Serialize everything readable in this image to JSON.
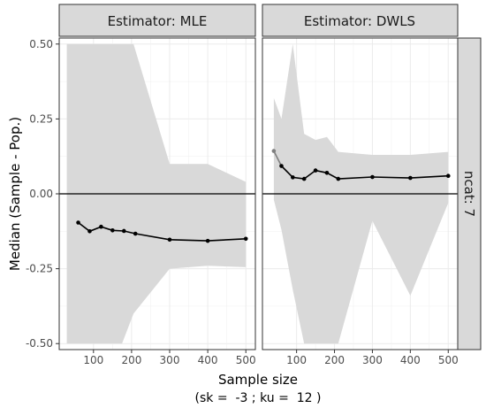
{
  "chart_data": {
    "type": "line",
    "ylabel": "Median (Sample - Pop.)",
    "xlabel": "Sample size",
    "subtitle": "(sk =  -3 ; ku =  12 )",
    "row_strip": "ncat: 7",
    "ylim": [
      -0.52,
      0.52
    ],
    "xlim": [
      10,
      525
    ],
    "y_ticks": [
      -0.5,
      -0.25,
      0.0,
      0.25,
      0.5
    ],
    "y_tick_labels": [
      "-0.50",
      "-0.25",
      "0.00",
      "0.25",
      "0.50"
    ],
    "x_ticks": [
      100,
      200,
      300,
      400,
      500
    ],
    "x_tick_labels": [
      "100",
      "200",
      "300",
      "400",
      "500"
    ],
    "reference_line": 0,
    "grid": true,
    "colors": {
      "band": "#d9d9d9",
      "line": "#000000",
      "strip_fill": "#d9d9d9",
      "grid": "#ebebeb",
      "first_segment": "#7f7f7f"
    },
    "panels": [
      {
        "title": "Estimator: MLE",
        "points": [
          {
            "x": 60,
            "y": -0.096
          },
          {
            "x": 90,
            "y": -0.125
          },
          {
            "x": 120,
            "y": -0.11
          },
          {
            "x": 150,
            "y": -0.122
          },
          {
            "x": 180,
            "y": -0.124
          },
          {
            "x": 210,
            "y": -0.133
          },
          {
            "x": 300,
            "y": -0.153
          },
          {
            "x": 400,
            "y": -0.157
          },
          {
            "x": 500,
            "y": -0.15
          }
        ],
        "band": [
          {
            "x": 30,
            "lo": -0.5,
            "hi": 0.5
          },
          {
            "x": 175,
            "lo": -0.5,
            "hi": 0.5
          },
          {
            "x": 205,
            "lo": -0.4,
            "hi": 0.5
          },
          {
            "x": 300,
            "lo": -0.25,
            "hi": 0.1
          },
          {
            "x": 400,
            "lo": -0.24,
            "hi": 0.1
          },
          {
            "x": 500,
            "lo": -0.245,
            "hi": 0.04
          }
        ]
      },
      {
        "title": "Estimator: DWLS",
        "points": [
          {
            "x": 40,
            "y": 0.143
          },
          {
            "x": 60,
            "y": 0.093
          },
          {
            "x": 90,
            "y": 0.055
          },
          {
            "x": 120,
            "y": 0.05
          },
          {
            "x": 150,
            "y": 0.078
          },
          {
            "x": 180,
            "y": 0.07
          },
          {
            "x": 210,
            "y": 0.05
          },
          {
            "x": 300,
            "y": 0.056
          },
          {
            "x": 400,
            "y": 0.053
          },
          {
            "x": 500,
            "y": 0.06
          }
        ],
        "band": [
          {
            "x": 40,
            "lo": -0.02,
            "hi": 0.32
          },
          {
            "x": 60,
            "lo": -0.12,
            "hi": 0.25
          },
          {
            "x": 90,
            "lo": -0.32,
            "hi": 0.5
          },
          {
            "x": 120,
            "lo": -0.5,
            "hi": 0.2
          },
          {
            "x": 150,
            "lo": -0.5,
            "hi": 0.18
          },
          {
            "x": 180,
            "lo": -0.5,
            "hi": 0.19
          },
          {
            "x": 210,
            "lo": -0.5,
            "hi": 0.14
          },
          {
            "x": 300,
            "lo": -0.09,
            "hi": 0.13
          },
          {
            "x": 400,
            "lo": -0.34,
            "hi": 0.13
          },
          {
            "x": 500,
            "lo": -0.03,
            "hi": 0.14
          }
        ]
      }
    ]
  }
}
